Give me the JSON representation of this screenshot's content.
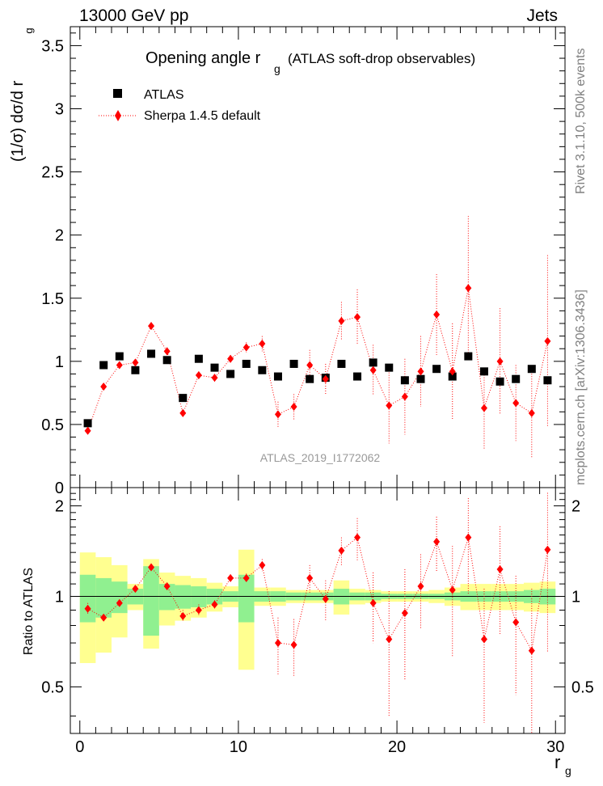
{
  "header": {
    "left": "13000 GeV pp",
    "right": "Jets"
  },
  "side_text": {
    "top": "Rivet 3.1.10,  500k events",
    "bottom": "mcplots.cern.ch [arXiv:1306.3436]"
  },
  "chart_data": {
    "type": "scatter",
    "title": "Opening angle r",
    "title_sub": "g",
    "title_suffix": "(ATLAS soft-drop observables)",
    "watermark": "ATLAS_2019_I1772062",
    "xlabel": "r",
    "xlabel_sub": "g",
    "ylabel": "(1/σ) dσ/d r",
    "ylabel_sub": "g",
    "xlim": [
      -0.6,
      30.6
    ],
    "x_ticks": [
      "0",
      "10",
      "20",
      "30"
    ],
    "main": {
      "ylim": [
        0,
        3.65
      ],
      "y_ticks": [
        "0",
        "0.5",
        "1",
        "1.5",
        "2",
        "2.5",
        "3",
        "3.5"
      ],
      "y_tick_values": [
        0,
        0.5,
        1,
        1.5,
        2,
        2.5,
        3,
        3.5
      ]
    },
    "ratio": {
      "ylabel": "Ratio to ATLAS",
      "ylim": [
        0.35,
        2.3
      ],
      "y_ticks": [
        "0.5",
        "1",
        "2"
      ],
      "y_tick_values": [
        0.5,
        1,
        2
      ]
    },
    "legend": [
      {
        "name": "ATLAS",
        "marker": "square",
        "color": "#000000"
      },
      {
        "name": "Sherpa 1.4.5 default",
        "marker": "diamond",
        "color": "#ff0000"
      }
    ],
    "x": [
      0.5,
      1.5,
      2.5,
      3.5,
      4.5,
      5.5,
      6.5,
      7.5,
      8.5,
      9.5,
      10.5,
      11.5,
      12.5,
      13.5,
      14.5,
      15.5,
      16.5,
      17.5,
      18.5,
      19.5,
      20.5,
      21.5,
      22.5,
      23.5,
      24.5,
      25.5,
      26.5,
      27.5,
      28.5,
      29.5
    ],
    "series": [
      {
        "name": "ATLAS",
        "values": [
          0.51,
          0.97,
          1.04,
          0.93,
          1.06,
          1.01,
          0.71,
          1.02,
          0.95,
          0.9,
          0.98,
          0.93,
          0.88,
          0.98,
          0.86,
          0.87,
          0.98,
          0.88,
          0.99,
          0.95,
          0.85,
          0.86,
          0.94,
          0.88,
          1.04,
          0.92,
          0.84,
          0.86,
          0.94,
          0.85
        ]
      },
      {
        "name": "Sherpa 1.4.5 default",
        "values": [
          0.45,
          0.8,
          0.97,
          0.99,
          1.28,
          1.08,
          0.59,
          0.89,
          0.87,
          1.02,
          1.11,
          1.14,
          0.58,
          0.64,
          0.97,
          0.86,
          1.32,
          1.35,
          0.93,
          0.65,
          0.72,
          0.92,
          1.37,
          0.92,
          1.58,
          0.63,
          1.0,
          0.67,
          0.59,
          1.16
        ],
        "errors": [
          0.02,
          0.02,
          0.02,
          0.02,
          0.03,
          0.03,
          0.03,
          0.03,
          0.03,
          0.03,
          0.04,
          0.06,
          0.1,
          0.1,
          0.12,
          0.12,
          0.15,
          0.22,
          0.2,
          0.3,
          0.3,
          0.28,
          0.32,
          0.38,
          0.57,
          0.32,
          0.42,
          0.3,
          0.35,
          0.68
        ]
      }
    ],
    "ratio_values": [
      0.91,
      0.85,
      0.95,
      1.06,
      1.25,
      1.08,
      0.86,
      0.9,
      0.94,
      1.15,
      1.15,
      1.27,
      0.7,
      0.69,
      1.15,
      0.98,
      1.42,
      1.57,
      0.95,
      0.72,
      0.88,
      1.08,
      1.52,
      1.05,
      1.57,
      0.72,
      1.23,
      0.82,
      0.66,
      1.43
    ],
    "ratio_errors": [
      0.04,
      0.02,
      0.02,
      0.02,
      0.03,
      0.03,
      0.04,
      0.04,
      0.03,
      0.03,
      0.04,
      0.06,
      0.15,
      0.15,
      0.12,
      0.15,
      0.15,
      0.25,
      0.25,
      0.32,
      0.35,
      0.3,
      0.32,
      0.42,
      0.55,
      0.34,
      0.48,
      0.35,
      0.4,
      0.78
    ],
    "band_inner": [
      0.18,
      0.15,
      0.12,
      0.06,
      0.26,
      0.1,
      0.09,
      0.08,
      0.06,
      0.04,
      0.18,
      0.04,
      0.04,
      0.03,
      0.03,
      0.03,
      0.06,
      0.03,
      0.03,
      0.02,
      0.02,
      0.02,
      0.02,
      0.03,
      0.04,
      0.04,
      0.04,
      0.04,
      0.05,
      0.06
    ],
    "band_outer": [
      0.4,
      0.35,
      0.27,
      0.1,
      0.33,
      0.2,
      0.17,
      0.15,
      0.11,
      0.08,
      0.43,
      0.07,
      0.07,
      0.05,
      0.05,
      0.05,
      0.13,
      0.06,
      0.05,
      0.04,
      0.04,
      0.04,
      0.05,
      0.07,
      0.1,
      0.1,
      0.1,
      0.1,
      0.11,
      0.12
    ],
    "colors": {
      "data": "#000000",
      "mc": "#ff0000",
      "band_inner": "#90f090",
      "band_outer": "#ffff90"
    }
  }
}
